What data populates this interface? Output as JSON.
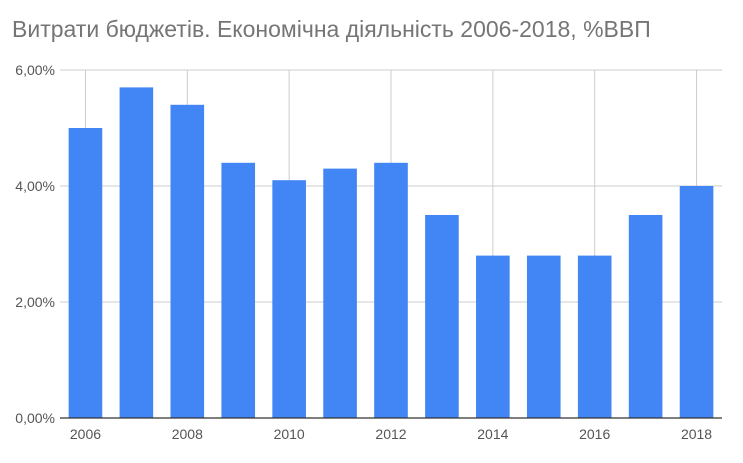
{
  "chart_data": {
    "type": "bar",
    "title": "Витрати бюджетів. Економічна діяльність 2006-2018, %ВВП",
    "xlabel": "",
    "ylabel": "",
    "categories": [
      "2006",
      "2007",
      "2008",
      "2009",
      "2010",
      "2011",
      "2012",
      "2013",
      "2014",
      "2015",
      "2016",
      "2017",
      "2018"
    ],
    "values": [
      5.0,
      5.7,
      5.4,
      4.4,
      4.1,
      4.3,
      4.4,
      3.5,
      2.8,
      2.8,
      2.8,
      3.5,
      4.0
    ],
    "x_tick_labels": [
      "2006",
      "",
      "2008",
      "",
      "2010",
      "",
      "2012",
      "",
      "2014",
      "",
      "2016",
      "",
      "2018"
    ],
    "ylim": [
      0,
      6
    ],
    "y_ticks": [
      0,
      2,
      4,
      6
    ],
    "y_tick_labels": [
      "0,00%",
      "2,00%",
      "4,00%",
      "6,00%"
    ],
    "grid": true,
    "legend": "none",
    "bar_color": "#4285f4",
    "grid_color": "#cccccc",
    "axis_color": "#333333"
  }
}
